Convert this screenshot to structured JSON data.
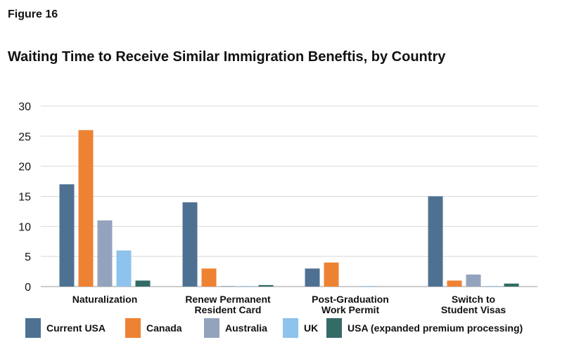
{
  "figure_label": "Figure 16",
  "chart_data": {
    "type": "bar",
    "title": "Waiting Time to Receive Similar Immigration Beneftis, by Country",
    "xlabel": "",
    "ylabel": "",
    "ylim": [
      0,
      30
    ],
    "yticks": [
      "0",
      "5",
      "10",
      "15",
      "20",
      "25",
      "30"
    ],
    "grid": true,
    "legend_position": "bottom",
    "categories": [
      [
        "Naturalization"
      ],
      [
        "Renew Permanent",
        "Resident Card"
      ],
      [
        "Post-Graduation",
        "Work Permit"
      ],
      [
        "Switch to",
        "Student Visas"
      ]
    ],
    "series": [
      {
        "name": "Current USA",
        "color": "#4e7192",
        "values": [
          17,
          14,
          3,
          15
        ]
      },
      {
        "name": "Canada",
        "color": "#ee8233",
        "values": [
          26,
          3,
          4,
          1
        ]
      },
      {
        "name": "Australia",
        "color": "#93a3bd",
        "values": [
          11,
          0.1,
          0,
          2
        ]
      },
      {
        "name": "UK",
        "color": "#8dc3ec",
        "values": [
          6,
          0.1,
          0.1,
          0.1
        ]
      },
      {
        "name": "USA (expanded premium processing)",
        "color": "#336b65",
        "values": [
          1,
          0.25,
          0,
          0.5
        ]
      }
    ]
  }
}
